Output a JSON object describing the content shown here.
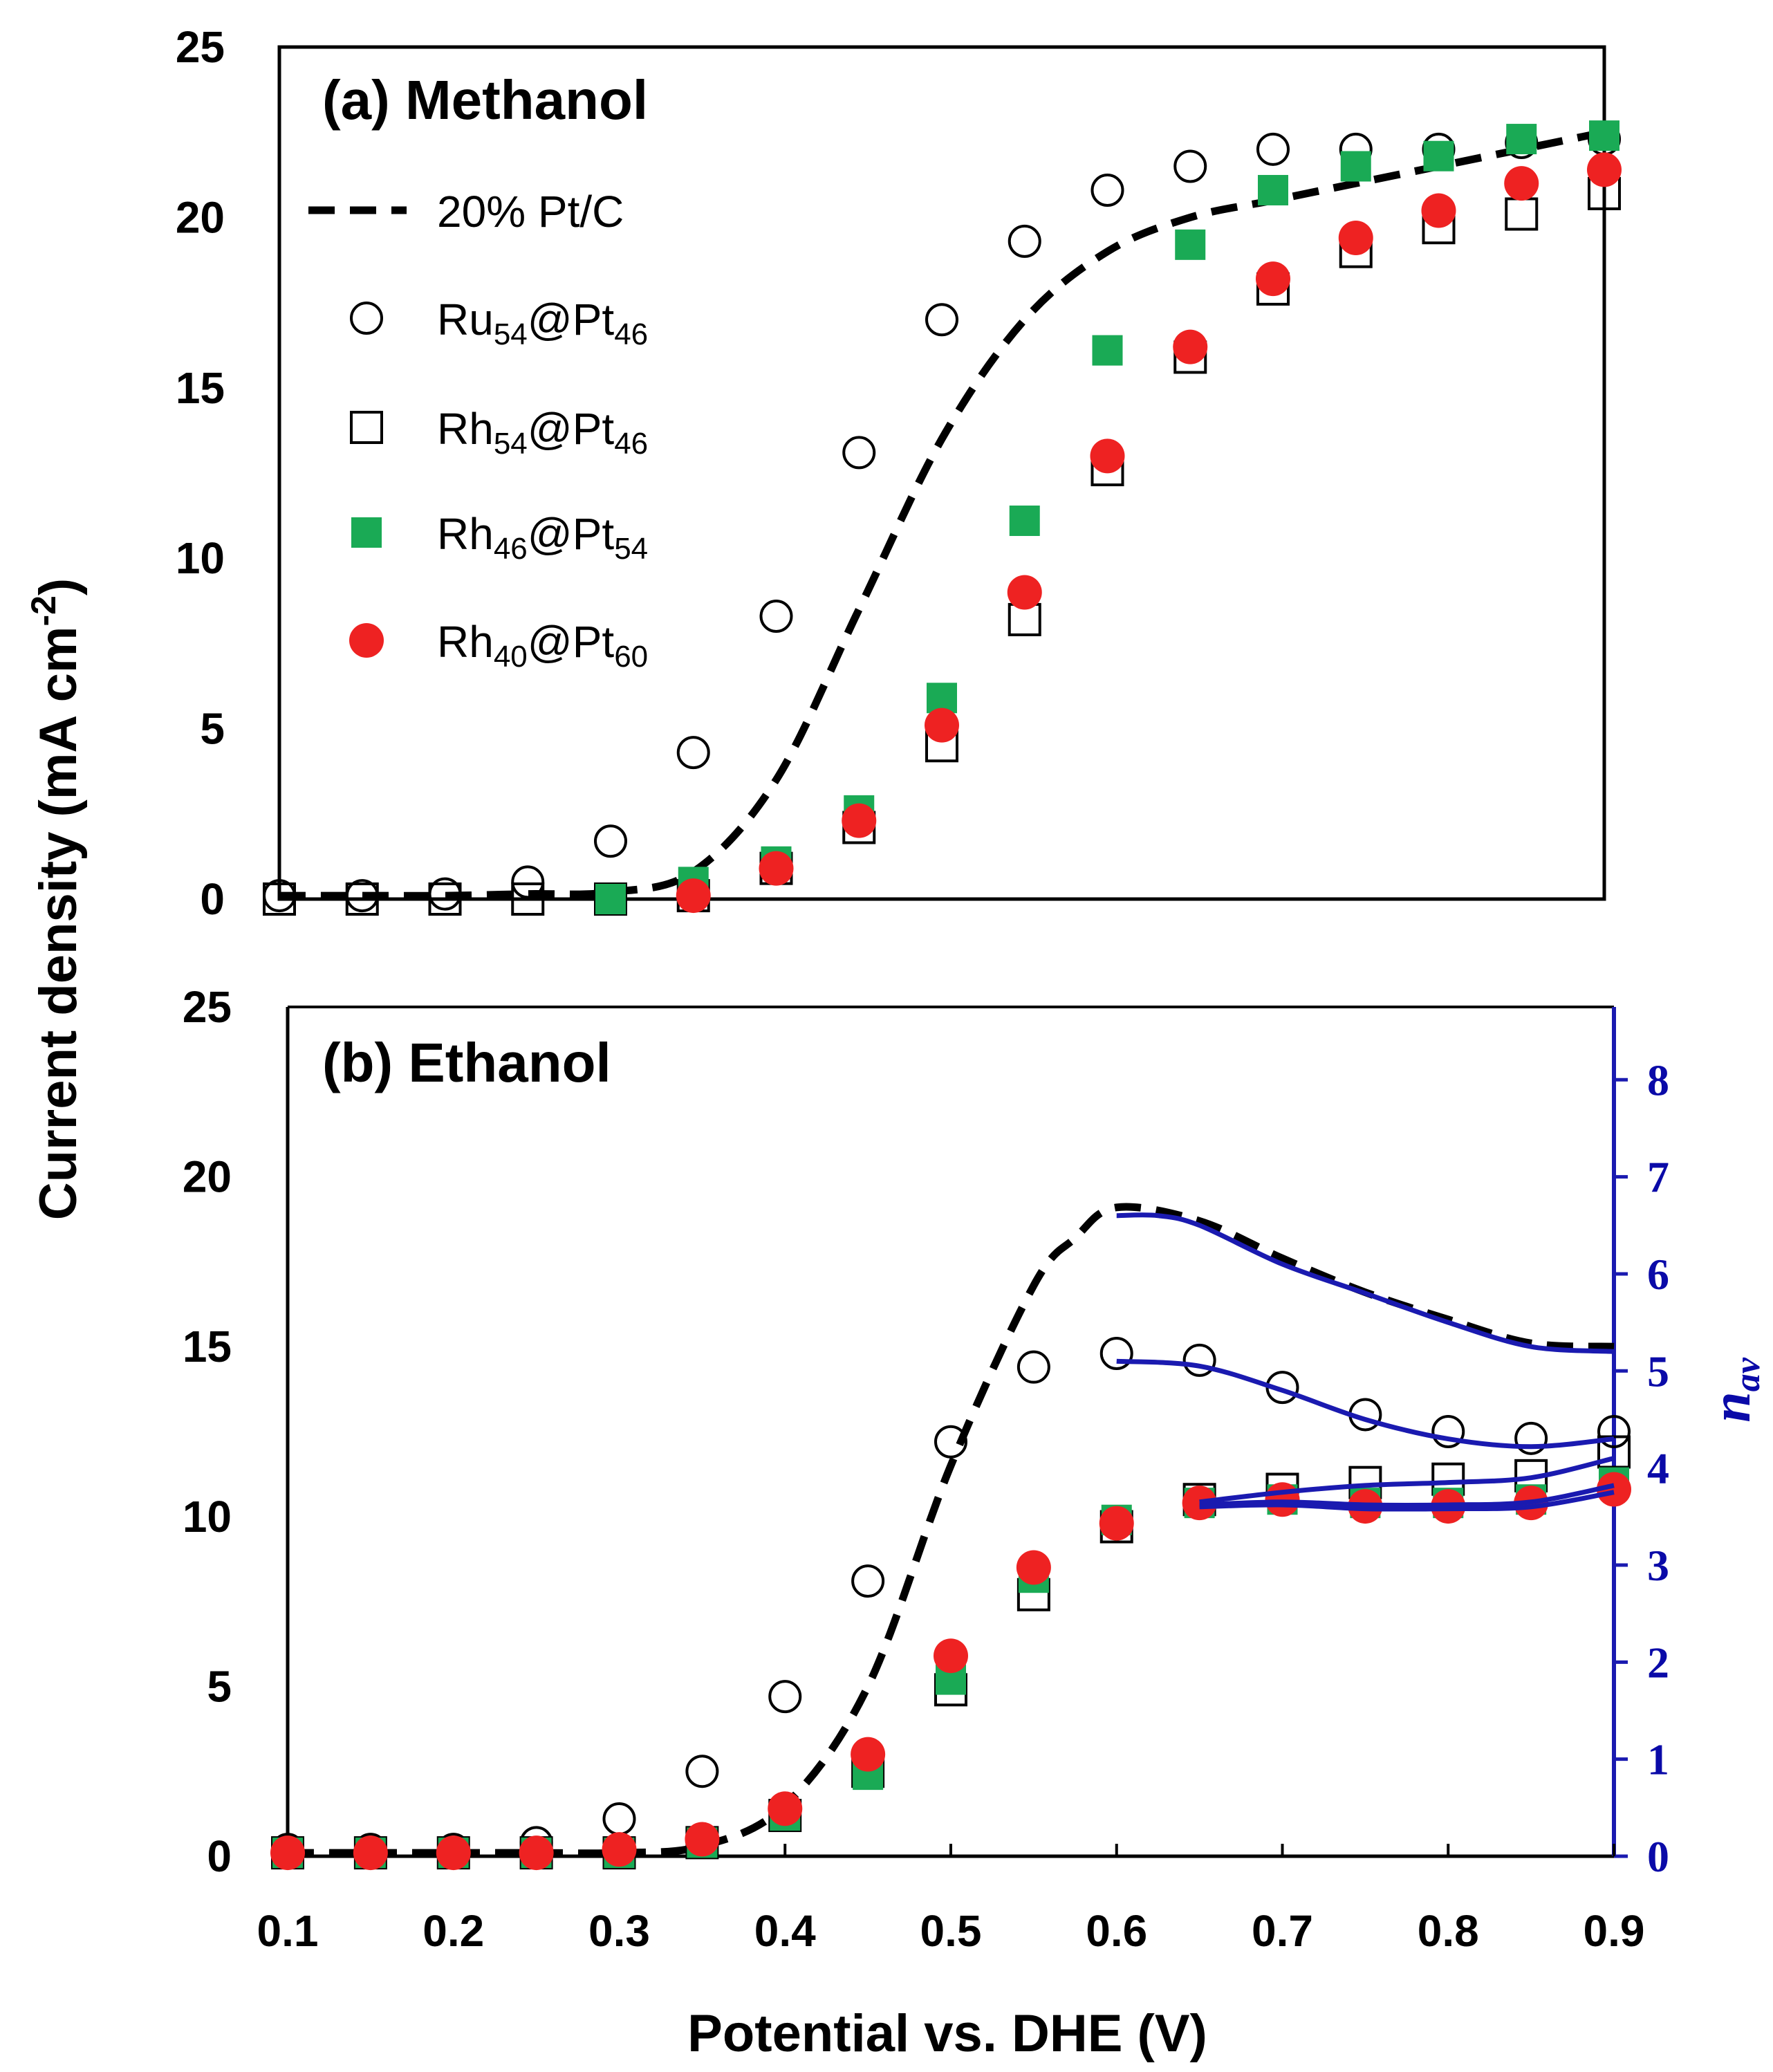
{
  "chart_data": [
    {
      "type": "scatter",
      "panel": "(a) Methanol",
      "title": "(a) Methanol",
      "xlim": [
        0.1,
        0.9
      ],
      "ylim": [
        0,
        25
      ],
      "yticks": [
        0,
        5,
        10,
        15,
        20,
        25
      ],
      "ylabel": "Current density (mA cm-2)",
      "legend": "upper-left",
      "series": [
        {
          "name": "20% Pt/C",
          "style": "dashed-line",
          "color": "#000000",
          "x": [
            0.1,
            0.15,
            0.2,
            0.25,
            0.3,
            0.35,
            0.4,
            0.45,
            0.5,
            0.55,
            0.6,
            0.65,
            0.7,
            0.75,
            0.8,
            0.85,
            0.9
          ],
          "y": [
            0.1,
            0.1,
            0.1,
            0.15,
            0.2,
            0.8,
            3.5,
            8.5,
            13.5,
            17.0,
            19.0,
            20.0,
            20.5,
            21.0,
            21.5,
            22.0,
            22.5
          ]
        },
        {
          "name": "Ru54@Pt46",
          "marker": "open-circle",
          "color": "#000000",
          "x": [
            0.1,
            0.15,
            0.2,
            0.25,
            0.3,
            0.35,
            0.4,
            0.45,
            0.5,
            0.55,
            0.6,
            0.65,
            0.7,
            0.75,
            0.8,
            0.85,
            0.9
          ],
          "y": [
            0.1,
            0.1,
            0.15,
            0.5,
            1.7,
            4.3,
            8.3,
            13.1,
            17.0,
            19.3,
            20.8,
            21.5,
            22.0,
            22.0,
            22.0,
            22.2,
            22.3
          ]
        },
        {
          "name": "Rh54@Pt46",
          "marker": "open-square",
          "color": "#000000",
          "x": [
            0.1,
            0.15,
            0.2,
            0.25,
            0.3,
            0.35,
            0.4,
            0.45,
            0.5,
            0.55,
            0.6,
            0.65,
            0.7,
            0.75,
            0.8,
            0.85,
            0.9
          ],
          "y": [
            0.0,
            0.0,
            0.0,
            0.0,
            0.0,
            0.1,
            0.9,
            2.1,
            4.5,
            8.2,
            12.6,
            15.9,
            17.9,
            19.0,
            19.7,
            20.1,
            20.7
          ]
        },
        {
          "name": "Rh46@Pt54",
          "marker": "filled-square",
          "color": "#1aaa55",
          "x": [
            0.3,
            0.35,
            0.4,
            0.45,
            0.5,
            0.55,
            0.6,
            0.65,
            0.7,
            0.75,
            0.8,
            0.85,
            0.9
          ],
          "y": [
            0.0,
            0.5,
            1.1,
            2.6,
            5.9,
            11.1,
            16.1,
            19.2,
            20.8,
            21.5,
            21.8,
            22.3,
            22.4
          ]
        },
        {
          "name": "Rh40@Pt60",
          "marker": "filled-circle",
          "color": "#ee2222",
          "x": [
            0.35,
            0.4,
            0.45,
            0.5,
            0.55,
            0.6,
            0.65,
            0.7,
            0.75,
            0.8,
            0.85,
            0.9
          ],
          "y": [
            0.1,
            0.9,
            2.3,
            5.1,
            9.0,
            13.0,
            16.2,
            18.2,
            19.4,
            20.2,
            21.0,
            21.4
          ]
        }
      ]
    },
    {
      "type": "scatter",
      "panel": "(b) Ethanol",
      "title": "(b) Ethanol",
      "xlim": [
        0.1,
        0.9
      ],
      "ylim": [
        0,
        25
      ],
      "yticks": [
        0,
        5,
        10,
        15,
        20,
        25
      ],
      "xticks": [
        0.1,
        0.2,
        0.3,
        0.4,
        0.5,
        0.6,
        0.7,
        0.8,
        0.9
      ],
      "xlabel": "Potential vs. DHE (V)",
      "y2label": "n_av",
      "y2lim": [
        0,
        8.75
      ],
      "y2ticks": [
        0,
        1,
        2,
        3,
        4,
        5,
        6,
        7,
        8
      ],
      "series": [
        {
          "name": "20% Pt/C",
          "style": "dashed-line",
          "color": "#000000",
          "x": [
            0.1,
            0.15,
            0.2,
            0.25,
            0.3,
            0.35,
            0.4,
            0.45,
            0.5,
            0.55,
            0.575,
            0.6,
            0.65,
            0.7,
            0.75,
            0.8,
            0.85,
            0.9
          ],
          "y": [
            0.1,
            0.1,
            0.1,
            0.1,
            0.1,
            0.3,
            1.5,
            5.0,
            11.5,
            16.8,
            18.2,
            19.1,
            18.7,
            17.6,
            16.6,
            15.8,
            15.1,
            15.0
          ]
        },
        {
          "name": "Ru54@Pt46",
          "marker": "open-circle",
          "color": "#000000",
          "x": [
            0.1,
            0.15,
            0.2,
            0.25,
            0.3,
            0.35,
            0.4,
            0.45,
            0.5,
            0.55,
            0.6,
            0.65,
            0.7,
            0.75,
            0.8,
            0.85,
            0.9
          ],
          "y": [
            0.2,
            0.2,
            0.2,
            0.4,
            1.1,
            2.5,
            4.7,
            8.1,
            12.2,
            14.4,
            14.8,
            14.6,
            13.8,
            13.0,
            12.5,
            12.3,
            12.5
          ]
        },
        {
          "name": "Rh54@Pt46",
          "marker": "open-square",
          "color": "#000000",
          "x": [
            0.1,
            0.15,
            0.2,
            0.25,
            0.3,
            0.35,
            0.4,
            0.45,
            0.5,
            0.55,
            0.6,
            0.65,
            0.7,
            0.75,
            0.8,
            0.85,
            0.9
          ],
          "y": [
            0.1,
            0.1,
            0.1,
            0.1,
            0.1,
            0.4,
            1.2,
            2.5,
            4.9,
            7.7,
            9.7,
            10.5,
            10.8,
            11.0,
            11.1,
            11.2,
            11.9
          ]
        },
        {
          "name": "Rh46@Pt54",
          "marker": "filled-square",
          "color": "#1aaa55",
          "x": [
            0.1,
            0.15,
            0.2,
            0.25,
            0.3,
            0.35,
            0.4,
            0.45,
            0.5,
            0.55,
            0.6,
            0.65,
            0.7,
            0.75,
            0.8,
            0.85,
            0.9
          ],
          "y": [
            0.1,
            0.1,
            0.1,
            0.1,
            0.1,
            0.4,
            1.2,
            2.4,
            5.2,
            8.2,
            9.9,
            10.4,
            10.5,
            10.4,
            10.4,
            10.5,
            11.0
          ]
        },
        {
          "name": "Rh40@Pt60",
          "marker": "filled-circle",
          "color": "#ee2222",
          "x": [
            0.1,
            0.15,
            0.2,
            0.25,
            0.3,
            0.35,
            0.4,
            0.45,
            0.5,
            0.55,
            0.6,
            0.65,
            0.7,
            0.75,
            0.8,
            0.85,
            0.9
          ],
          "y": [
            0.1,
            0.1,
            0.1,
            0.1,
            0.2,
            0.5,
            1.4,
            3.0,
            5.9,
            8.5,
            9.8,
            10.4,
            10.5,
            10.3,
            10.3,
            10.4,
            10.8
          ]
        },
        {
          "name": "n_av (20% Pt/C)",
          "style": "solid-line",
          "axis": "right",
          "color": "#1a1ab0",
          "x": [
            0.6,
            0.625,
            0.65,
            0.7,
            0.75,
            0.8,
            0.85,
            0.9
          ],
          "y": [
            6.6,
            6.6,
            6.5,
            6.1,
            5.8,
            5.5,
            5.25,
            5.2
          ]
        },
        {
          "name": "n_av (Ru54@Pt46)",
          "style": "solid-line",
          "axis": "right",
          "color": "#1a1ab0",
          "x": [
            0.6,
            0.65,
            0.7,
            0.75,
            0.8,
            0.85,
            0.9
          ],
          "y": [
            5.1,
            5.05,
            4.8,
            4.5,
            4.3,
            4.22,
            4.3
          ]
        },
        {
          "name": "n_av (Rh54@Pt46)",
          "style": "solid-line",
          "axis": "right",
          "color": "#1a1ab0",
          "x": [
            0.65,
            0.7,
            0.75,
            0.8,
            0.85,
            0.9
          ],
          "y": [
            3.65,
            3.75,
            3.82,
            3.85,
            3.9,
            4.1
          ]
        },
        {
          "name": "n_av (Rh46@Pt54)",
          "style": "solid-line",
          "axis": "right",
          "color": "#1a1ab0",
          "x": [
            0.65,
            0.7,
            0.75,
            0.8,
            0.85,
            0.9
          ],
          "y": [
            3.62,
            3.65,
            3.62,
            3.62,
            3.65,
            3.82
          ]
        },
        {
          "name": "n_av (Rh40@Pt60)",
          "style": "solid-line",
          "axis": "right",
          "color": "#1a1ab0",
          "x": [
            0.65,
            0.7,
            0.75,
            0.8,
            0.85,
            0.9
          ],
          "y": [
            3.6,
            3.62,
            3.58,
            3.58,
            3.6,
            3.75
          ]
        }
      ]
    }
  ],
  "colors": {
    "green": "#1aaa55",
    "red": "#ee2222",
    "blue": "#1a1ab0",
    "black": "#000000"
  }
}
